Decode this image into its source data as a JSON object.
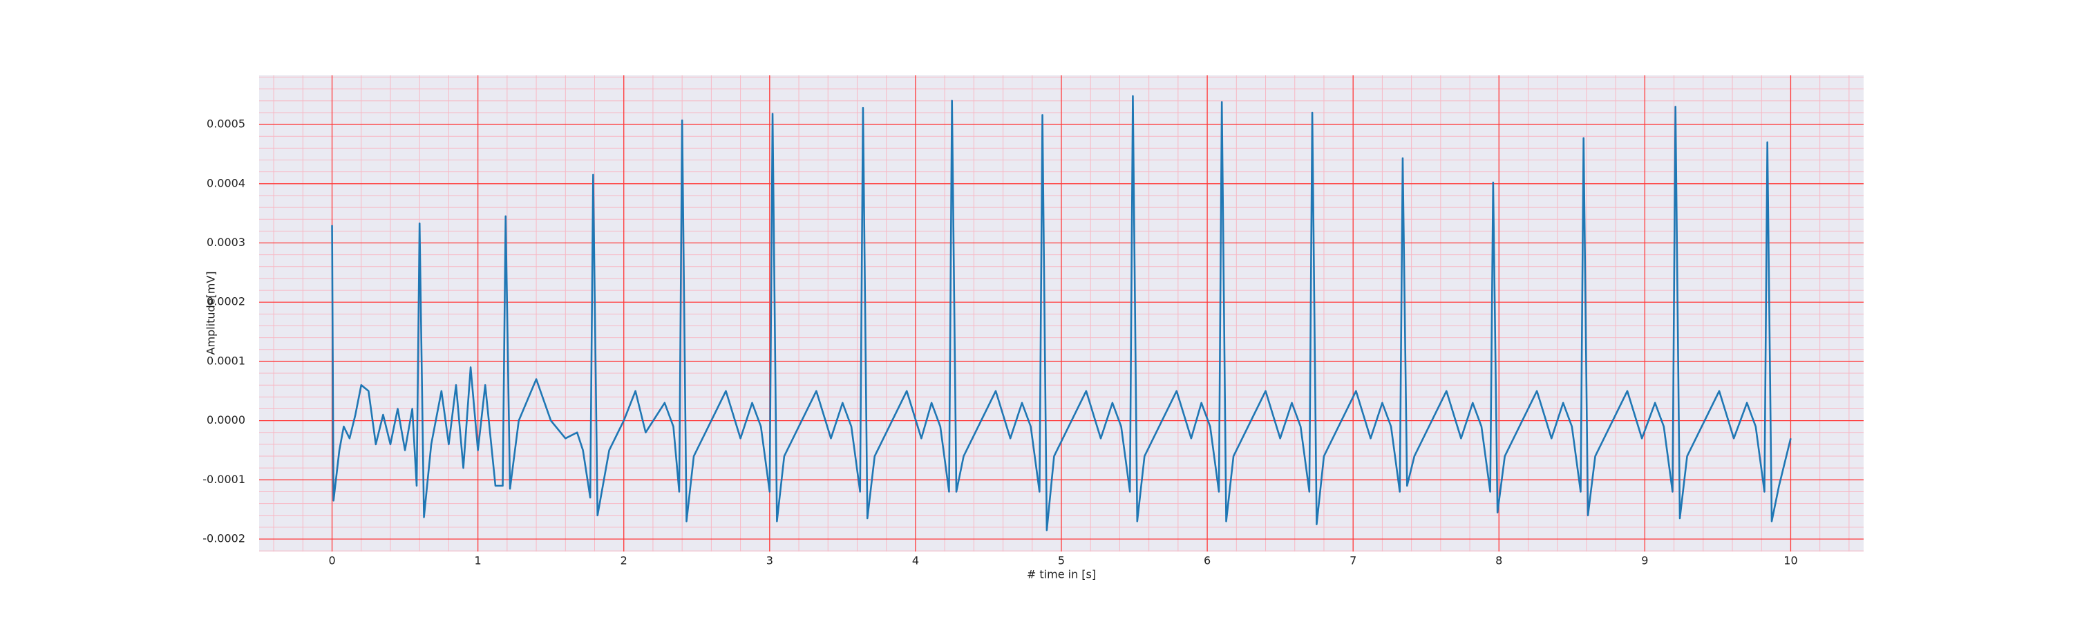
{
  "chart_data": {
    "type": "line",
    "xlabel": "# time in [s]",
    "ylabel": "Amplitude[mV]",
    "xlim": [
      -0.5,
      10.5
    ],
    "ylim": [
      -0.000221,
      0.000583
    ],
    "xticks": [
      0,
      1,
      2,
      3,
      4,
      5,
      6,
      7,
      8,
      9,
      10
    ],
    "yticks": [
      -0.0002,
      -0.0001,
      {
        "value": 0,
        "label": "0.0000"
      },
      0.0001,
      0.0002,
      0.0003,
      0.0004,
      0.0005
    ],
    "grid": true,
    "minor_grid": true,
    "background": "#eaeaf2",
    "grid_color": "#ff3b3b",
    "minor_grid_color": "#f7b8c4",
    "series": [
      {
        "color": "#1f77b4",
        "x": [
          0.0,
          0.01,
          0.05,
          0.08,
          0.12,
          0.16,
          0.2,
          0.25,
          0.3,
          0.35,
          0.4,
          0.45,
          0.5,
          0.55,
          0.58,
          0.6,
          0.63,
          0.68,
          0.75,
          0.8,
          0.85,
          0.9,
          0.95,
          1.0,
          1.05,
          1.12,
          1.17,
          1.19,
          1.22,
          1.28,
          1.4,
          1.5,
          1.6,
          1.68,
          1.72,
          1.77,
          1.79,
          1.82,
          1.9,
          2.0,
          2.08,
          2.15,
          2.28,
          2.34,
          2.38,
          2.4,
          2.43,
          2.48,
          2.58,
          2.7,
          2.8,
          2.88,
          2.94,
          3.0,
          3.02,
          3.05,
          3.1,
          3.2,
          3.32,
          3.42,
          3.5,
          3.56,
          3.62,
          3.64,
          3.67,
          3.72,
          3.82,
          3.94,
          4.04,
          4.11,
          4.17,
          4.23,
          4.25,
          4.28,
          4.33,
          4.43,
          4.55,
          4.65,
          4.73,
          4.79,
          4.85,
          4.87,
          4.9,
          4.95,
          5.05,
          5.17,
          5.27,
          5.35,
          5.41,
          5.47,
          5.49,
          5.52,
          5.57,
          5.67,
          5.79,
          5.89,
          5.96,
          6.02,
          6.08,
          6.1,
          6.13,
          6.18,
          6.28,
          6.4,
          6.5,
          6.58,
          6.64,
          6.7,
          6.72,
          6.75,
          6.8,
          6.9,
          7.02,
          7.12,
          7.2,
          7.26,
          7.32,
          7.34,
          7.37,
          7.42,
          7.52,
          7.64,
          7.74,
          7.82,
          7.88,
          7.94,
          7.96,
          7.99,
          8.04,
          8.14,
          8.26,
          8.36,
          8.44,
          8.5,
          8.56,
          8.58,
          8.61,
          8.66,
          8.76,
          8.88,
          8.98,
          9.07,
          9.13,
          9.19,
          9.21,
          9.24,
          9.29,
          9.39,
          9.51,
          9.61,
          9.7,
          9.76,
          9.82,
          9.84,
          9.87,
          9.92,
          10.0
        ],
        "values": [
          0.00033,
          -0.000135,
          -5e-05,
          -1e-05,
          -3e-05,
          1e-05,
          6e-05,
          5e-05,
          -4e-05,
          1e-05,
          -4e-05,
          2e-05,
          -5e-05,
          2e-05,
          -0.00011,
          0.000333,
          -0.000163,
          -4e-05,
          5e-05,
          -4e-05,
          6e-05,
          -8e-05,
          9e-05,
          -5e-05,
          6e-05,
          -0.00011,
          -0.00011,
          0.000345,
          -0.000115,
          0.0,
          7e-05,
          0.0,
          -3e-05,
          -2e-05,
          -5e-05,
          -0.00013,
          0.000415,
          -0.00016,
          -5e-05,
          0.0,
          5e-05,
          -2e-05,
          3e-05,
          -1e-05,
          -0.00012,
          0.000507,
          -0.00017,
          -6e-05,
          -1e-05,
          5e-05,
          -3e-05,
          3e-05,
          -1e-05,
          -0.00012,
          0.000518,
          -0.00017,
          -6e-05,
          -1e-05,
          5e-05,
          -3e-05,
          3e-05,
          -1e-05,
          -0.00012,
          0.000528,
          -0.000165,
          -6e-05,
          -1e-05,
          5e-05,
          -3e-05,
          3e-05,
          -1e-05,
          -0.00012,
          0.00054,
          -0.00012,
          -6e-05,
          -1e-05,
          5e-05,
          -3e-05,
          3e-05,
          -1e-05,
          -0.00012,
          0.000516,
          -0.000185,
          -6e-05,
          -1e-05,
          5e-05,
          -3e-05,
          3e-05,
          -1e-05,
          -0.00012,
          0.000548,
          -0.00017,
          -6e-05,
          -1e-05,
          5e-05,
          -3e-05,
          3e-05,
          -1e-05,
          -0.00012,
          0.000538,
          -0.00017,
          -6e-05,
          -1e-05,
          5e-05,
          -3e-05,
          3e-05,
          -1e-05,
          -0.00012,
          0.00052,
          -0.000175,
          -6e-05,
          -1e-05,
          5e-05,
          -3e-05,
          3e-05,
          -1e-05,
          -0.00012,
          0.000443,
          -0.00011,
          -6e-05,
          -1e-05,
          5e-05,
          -3e-05,
          3e-05,
          -1e-05,
          -0.00012,
          0.000402,
          -0.000155,
          -6e-05,
          -1e-05,
          5e-05,
          -3e-05,
          3e-05,
          -1e-05,
          -0.00012,
          0.000477,
          -0.00016,
          -6e-05,
          -1e-05,
          5e-05,
          -3e-05,
          3e-05,
          -1e-05,
          -0.00012,
          0.00053,
          -0.000165,
          -6e-05,
          -1e-05,
          5e-05,
          -3e-05,
          3e-05,
          -1e-05,
          -0.00012,
          0.00047,
          -0.00017,
          -0.00011,
          -3e-05
        ]
      }
    ]
  }
}
